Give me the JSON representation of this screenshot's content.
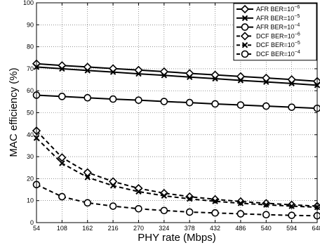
{
  "chart_data": {
    "type": "line",
    "xlabel": "PHY rate (Mbps)",
    "ylabel": "MAC efficiency (%)",
    "x": [
      54,
      108,
      162,
      216,
      270,
      324,
      378,
      432,
      486,
      540,
      594,
      648
    ],
    "x_tick_labels": [
      "54",
      "108",
      "162",
      "216",
      "270",
      "324",
      "378",
      "432",
      "486",
      "540",
      "594",
      "648"
    ],
    "ylim": [
      0,
      100
    ],
    "y_ticks": [
      0,
      10,
      20,
      30,
      40,
      50,
      60,
      70,
      80,
      90,
      100
    ],
    "grid": true,
    "legend_position": "top-right",
    "series": [
      {
        "name": "AFR BER=10^-6",
        "legend_base": "AFR BER=10",
        "legend_exp": "−6",
        "marker": "diamond",
        "dash": "solid",
        "values": [
          72.3,
          71.5,
          70.8,
          70.1,
          69.4,
          68.7,
          67.9,
          67.2,
          66.5,
          65.8,
          65.1,
          64.3
        ]
      },
      {
        "name": "AFR BER=10^-5",
        "legend_base": "AFR BER=10",
        "legend_exp": "−5",
        "marker": "x",
        "dash": "solid",
        "values": [
          70.8,
          70.0,
          69.2,
          68.5,
          67.7,
          67.0,
          66.2,
          65.5,
          64.7,
          64.0,
          63.3,
          62.5
        ]
      },
      {
        "name": "AFR BER=10^-4",
        "legend_base": "AFR BER=10",
        "legend_exp": "−4",
        "marker": "circle",
        "dash": "solid",
        "values": [
          58.0,
          57.4,
          56.8,
          56.2,
          55.7,
          55.1,
          54.6,
          54.0,
          53.5,
          53.0,
          52.5,
          52.0
        ]
      },
      {
        "name": "DCF BER=10^-6",
        "legend_base": "DCF BER=10",
        "legend_exp": "−6",
        "marker": "diamond",
        "dash": "dashed",
        "values": [
          41.8,
          29.6,
          22.8,
          18.7,
          15.6,
          13.4,
          11.8,
          10.6,
          9.6,
          8.8,
          8.1,
          7.5
        ]
      },
      {
        "name": "DCF BER=10^-5",
        "legend_base": "DCF BER=10",
        "legend_exp": "−5",
        "marker": "x",
        "dash": "dashed",
        "values": [
          38.5,
          27.0,
          20.6,
          16.8,
          14.1,
          12.2,
          10.8,
          9.7,
          8.8,
          8.1,
          7.5,
          7.0
        ]
      },
      {
        "name": "DCF BER=10^-4",
        "legend_base": "DCF BER=10",
        "legend_exp": "−4",
        "marker": "circle",
        "dash": "dashed",
        "values": [
          17.3,
          11.8,
          9.0,
          7.5,
          6.3,
          5.5,
          4.8,
          4.4,
          4.0,
          3.6,
          3.3,
          3.1
        ]
      }
    ]
  }
}
